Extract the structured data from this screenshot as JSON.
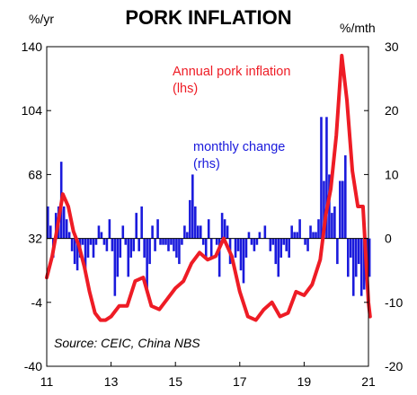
{
  "chart_data": {
    "type": "bar+line",
    "title": "PORK INFLATION",
    "left_axis": {
      "unit": "%/yr",
      "range": [
        -40,
        140
      ],
      "ticks": [
        -40,
        -4,
        32,
        68,
        104,
        140
      ]
    },
    "right_axis": {
      "unit": "%/mth",
      "range": [
        -20,
        30
      ],
      "ticks": [
        -20,
        -10,
        0,
        10,
        20,
        30
      ]
    },
    "x_axis": {
      "range": [
        2011,
        2021
      ],
      "tick_values": [
        2011,
        2013,
        2015,
        2017,
        2019,
        2021
      ],
      "tick_labels": [
        "11",
        "13",
        "15",
        "17",
        "19",
        "21"
      ]
    },
    "series": [
      {
        "name": "Annual pork inflation",
        "label_lines": [
          "Annual pork inflation",
          "(lhs)"
        ],
        "kind": "line",
        "axis": "left",
        "color": "#ee1c25",
        "points": [
          [
            2011.0,
            10
          ],
          [
            2011.17,
            22
          ],
          [
            2011.33,
            38
          ],
          [
            2011.5,
            57
          ],
          [
            2011.67,
            50
          ],
          [
            2011.83,
            36
          ],
          [
            2012.0,
            28
          ],
          [
            2012.17,
            16
          ],
          [
            2012.33,
            2
          ],
          [
            2012.5,
            -10
          ],
          [
            2012.67,
            -14
          ],
          [
            2012.83,
            -14
          ],
          [
            2013.0,
            -12
          ],
          [
            2013.25,
            -6
          ],
          [
            2013.5,
            -6
          ],
          [
            2013.75,
            8
          ],
          [
            2014.0,
            10
          ],
          [
            2014.25,
            -6
          ],
          [
            2014.5,
            -8
          ],
          [
            2014.75,
            -2
          ],
          [
            2015.0,
            4
          ],
          [
            2015.25,
            8
          ],
          [
            2015.5,
            18
          ],
          [
            2015.75,
            24
          ],
          [
            2016.0,
            20
          ],
          [
            2016.25,
            22
          ],
          [
            2016.5,
            32
          ],
          [
            2016.75,
            22
          ],
          [
            2017.0,
            2
          ],
          [
            2017.25,
            -12
          ],
          [
            2017.5,
            -14
          ],
          [
            2017.75,
            -8
          ],
          [
            2018.0,
            -4
          ],
          [
            2018.25,
            -12
          ],
          [
            2018.5,
            -10
          ],
          [
            2018.75,
            2
          ],
          [
            2019.0,
            0
          ],
          [
            2019.25,
            6
          ],
          [
            2019.5,
            20
          ],
          [
            2019.67,
            45
          ],
          [
            2019.83,
            60
          ],
          [
            2020.0,
            90
          ],
          [
            2020.17,
            135
          ],
          [
            2020.33,
            110
          ],
          [
            2020.5,
            70
          ],
          [
            2020.67,
            50
          ],
          [
            2020.83,
            50
          ],
          [
            2021.0,
            -4
          ],
          [
            2021.05,
            -12
          ]
        ]
      },
      {
        "name": "monthly change",
        "label_lines": [
          "monthly change",
          "(rhs)"
        ],
        "kind": "bar",
        "axis": "right",
        "color": "#1a1adc",
        "start": 2011.0,
        "step": 0.0833,
        "values": [
          5,
          2,
          -3,
          4,
          5,
          12,
          5,
          3,
          1,
          -2,
          -4,
          -5,
          -3,
          -1,
          -5,
          -3,
          -1,
          -3,
          -1,
          2,
          1,
          -1,
          -2,
          3,
          -2,
          -9,
          -6,
          -3,
          2,
          -1,
          -6,
          -3,
          -2,
          4,
          -2,
          5,
          -3,
          -8,
          -4,
          2,
          -2,
          3,
          -1,
          -1,
          -1,
          -2,
          -1,
          -2,
          -3,
          -4,
          -1,
          2,
          1,
          6,
          10,
          5,
          2,
          2,
          -1,
          -3,
          3,
          -3,
          0,
          -1,
          -6,
          4,
          3,
          2,
          -4,
          0,
          -3,
          -2,
          -5,
          -7,
          -3,
          1,
          -1,
          -2,
          -1,
          1,
          0,
          2,
          0,
          -2,
          -1,
          -4,
          -6,
          -3,
          -1,
          -2,
          -3,
          2,
          1,
          1,
          3,
          0,
          -1,
          -2,
          2,
          1,
          1,
          3,
          19,
          9,
          19,
          10,
          4,
          5,
          -4,
          9,
          9,
          13,
          -6,
          -3,
          -9,
          -6,
          -4,
          -9,
          -8,
          -4,
          -6
        ]
      }
    ],
    "source": "Source: CEIC, China NBS"
  }
}
